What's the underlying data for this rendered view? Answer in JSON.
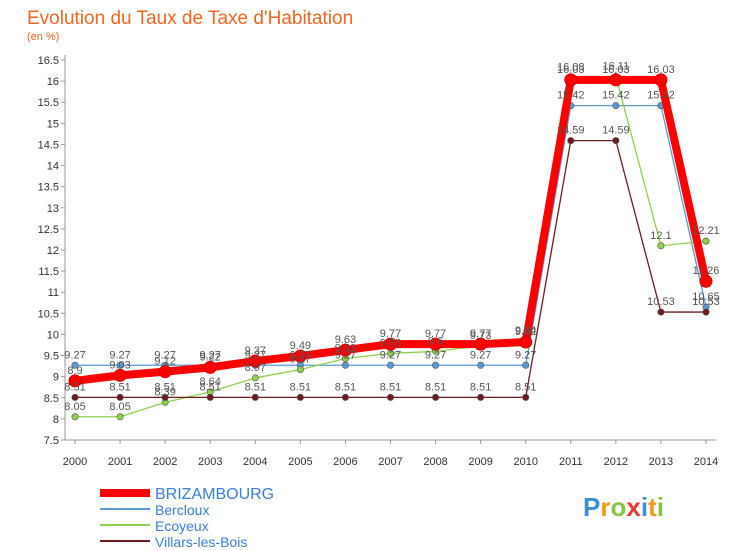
{
  "chart_data": {
    "type": "line",
    "title": "Evolution du Taux de Taxe d'Habitation",
    "subtitle": "(en %)",
    "x": [
      "2000",
      "2001",
      "2002",
      "2003",
      "2004",
      "2005",
      "2006",
      "2007",
      "2008",
      "2009",
      "2010",
      "2011",
      "2012",
      "2013",
      "2014"
    ],
    "yticks": [
      "7.5",
      "8",
      "8.5",
      "9",
      "9.5",
      "10",
      "10.5",
      "11",
      "11.5",
      "12",
      "12.5",
      "13",
      "13.5",
      "14",
      "14.5",
      "15",
      "15.5",
      "16",
      "16.5"
    ],
    "ylim": [
      7.5,
      16.5
    ],
    "grid": false,
    "legend_position": "bottom-left",
    "series": [
      {
        "name": "BRIZAMBOURG",
        "color": "#ff0000",
        "values": [
          8.9,
          9.03,
          9.12,
          9.22,
          9.37,
          9.49,
          9.63,
          9.77,
          9.77,
          9.77,
          9.82,
          16.03,
          16.03,
          16.03,
          11.26
        ],
        "labels": [
          "8.9",
          "9.03",
          "9.12",
          "9.22",
          "9.37",
          "9.49",
          "9.63",
          "9.77",
          "9.77",
          "9.77",
          "9.82",
          "16.03",
          "16.03",
          "16.03",
          "11.26"
        ]
      },
      {
        "name": "Bercloux",
        "color": "#5b9bd5",
        "values": [
          9.27,
          9.27,
          9.27,
          9.27,
          9.27,
          9.27,
          9.27,
          9.27,
          9.27,
          9.27,
          9.27,
          15.42,
          15.42,
          15.42,
          10.65
        ],
        "labels": [
          "9.27",
          "9.27",
          "9.27",
          "9.27",
          "9.27",
          "9.27",
          "9.27",
          "9.27",
          "9.27",
          "9.27",
          "9.27",
          "15.42",
          "15.42",
          "15.42",
          "10.65"
        ]
      },
      {
        "name": "Ecoyeux",
        "color": "#8fd14f",
        "values": [
          8.05,
          8.05,
          8.39,
          8.64,
          8.97,
          9.17,
          9.43,
          9.55,
          9.6,
          9.73,
          9.84,
          16.08,
          16.11,
          12.1,
          12.21
        ],
        "labels": [
          "8.05",
          "8.05",
          "8.39",
          "8.64",
          "8.97",
          "9.17",
          "9.43",
          "9.55",
          "9.6",
          "9.73",
          "9.84",
          "16.08",
          "16.11",
          "12.1",
          "12.21"
        ]
      },
      {
        "name": "Villars-les-Bois",
        "color": "#6b1e1e",
        "values": [
          8.51,
          8.51,
          8.51,
          8.51,
          8.51,
          8.51,
          8.51,
          8.51,
          8.51,
          8.51,
          8.51,
          14.59,
          14.59,
          10.53,
          10.53
        ],
        "labels": [
          "8.51",
          "8.51",
          "8.51",
          "8.51",
          "8.51",
          "8.51",
          "8.51",
          "8.51",
          "8.51",
          "8.51",
          "8.51",
          "14.59",
          "14.59",
          "10.53",
          "10.53"
        ]
      }
    ]
  },
  "brand": {
    "letters": [
      "P",
      "r",
      "o",
      "x",
      "i",
      "t",
      "i"
    ],
    "colors": [
      "#3b8fd6",
      "#f39c12",
      "#8bc34a",
      "#e53935",
      "#3b8fd6",
      "#f39c12",
      "#8bc34a"
    ]
  }
}
